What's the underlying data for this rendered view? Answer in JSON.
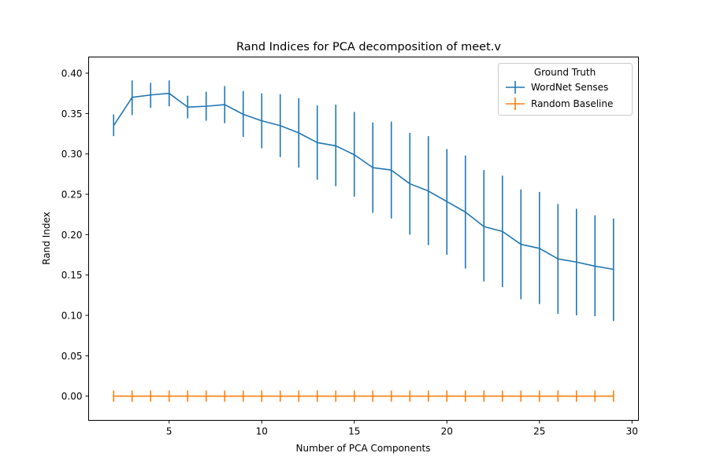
{
  "chart_data": {
    "type": "line",
    "title": "Rand Indices for PCA decomposition of meet.v",
    "xlabel": "Number of PCA Components",
    "ylabel": "Rand Index",
    "xlim": [
      0.65,
      30.35
    ],
    "ylim": [
      -0.03,
      0.42
    ],
    "xticks": [
      "5",
      "10",
      "15",
      "20",
      "25",
      "30"
    ],
    "yticks": [
      "0.00",
      "0.05",
      "0.10",
      "0.15",
      "0.20",
      "0.25",
      "0.30",
      "0.35",
      "0.40"
    ],
    "legend": {
      "title": "Ground Truth",
      "position": "top-right"
    },
    "x": [
      2,
      3,
      4,
      5,
      6,
      7,
      8,
      9,
      10,
      11,
      12,
      13,
      14,
      15,
      16,
      17,
      18,
      19,
      20,
      21,
      22,
      23,
      24,
      25,
      26,
      27,
      28,
      29
    ],
    "series": [
      {
        "name": "WordNet Senses",
        "color": "#1f77b4",
        "values": [
          0.335,
          0.37,
          0.373,
          0.375,
          0.358,
          0.359,
          0.361,
          0.349,
          0.341,
          0.335,
          0.326,
          0.314,
          0.31,
          0.299,
          0.283,
          0.28,
          0.263,
          0.254,
          0.241,
          0.228,
          0.21,
          0.204,
          0.188,
          0.183,
          0.17,
          0.166,
          0.161,
          0.157
        ],
        "err_low": [
          0.322,
          0.348,
          0.357,
          0.359,
          0.344,
          0.341,
          0.338,
          0.321,
          0.307,
          0.296,
          0.283,
          0.268,
          0.26,
          0.247,
          0.227,
          0.22,
          0.2,
          0.187,
          0.175,
          0.158,
          0.142,
          0.135,
          0.12,
          0.114,
          0.102,
          0.1,
          0.099,
          0.093
        ],
        "err_high": [
          0.349,
          0.391,
          0.388,
          0.391,
          0.372,
          0.377,
          0.384,
          0.378,
          0.375,
          0.374,
          0.369,
          0.36,
          0.361,
          0.352,
          0.339,
          0.34,
          0.326,
          0.322,
          0.306,
          0.298,
          0.28,
          0.273,
          0.256,
          0.253,
          0.238,
          0.232,
          0.224,
          0.22
        ]
      },
      {
        "name": "Random Baseline",
        "color": "#ff7f0e",
        "values": [
          0.0,
          0.0,
          0.0,
          0.0,
          0.0,
          0.0,
          0.0,
          0.0,
          0.0,
          0.0,
          0.0,
          0.0,
          0.0,
          0.0,
          0.0,
          0.0,
          0.0,
          0.0,
          0.0,
          0.0,
          0.0,
          0.0,
          0.0,
          0.0,
          0.0,
          0.0,
          0.0,
          0.0
        ],
        "err_low": [
          -0.007,
          -0.007,
          -0.007,
          -0.007,
          -0.007,
          -0.007,
          -0.007,
          -0.007,
          -0.007,
          -0.007,
          -0.007,
          -0.007,
          -0.007,
          -0.007,
          -0.007,
          -0.007,
          -0.007,
          -0.007,
          -0.007,
          -0.007,
          -0.007,
          -0.007,
          -0.007,
          -0.007,
          -0.007,
          -0.007,
          -0.007,
          -0.007
        ],
        "err_high": [
          0.007,
          0.007,
          0.007,
          0.007,
          0.007,
          0.007,
          0.007,
          0.007,
          0.007,
          0.007,
          0.007,
          0.007,
          0.007,
          0.007,
          0.007,
          0.007,
          0.007,
          0.007,
          0.007,
          0.007,
          0.007,
          0.007,
          0.007,
          0.007,
          0.007,
          0.007,
          0.007,
          0.007
        ]
      }
    ],
    "grid": false
  }
}
